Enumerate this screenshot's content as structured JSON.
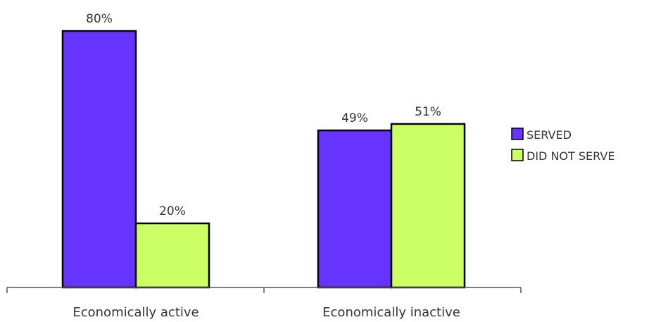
{
  "chart_data": {
    "type": "bar",
    "title": "",
    "xlabel": "",
    "ylabel": "",
    "ylim": [
      0,
      100
    ],
    "grid": false,
    "legend_position": "right",
    "categories": [
      "Economically active",
      "Economically inactive"
    ],
    "series": [
      {
        "name": "SERVED",
        "color": "#6633ff",
        "values": [
          80,
          49
        ],
        "labels": [
          "80%",
          "49%"
        ]
      },
      {
        "name": "DID NOT SERVE",
        "color": "#ccff66",
        "values": [
          20,
          51
        ],
        "labels": [
          "20%",
          "51%"
        ]
      }
    ]
  }
}
